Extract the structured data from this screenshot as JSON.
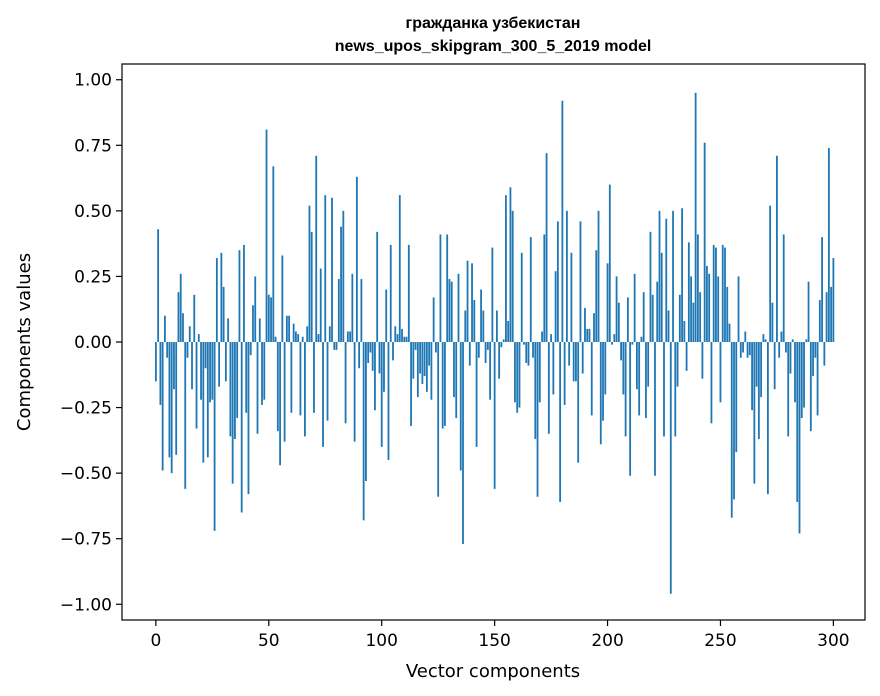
{
  "chart_data": {
    "type": "bar",
    "title_line1": "гражданка узбекистан",
    "title_line2": "news_upos_skipgram_300_5_2019 model",
    "xlabel": "Vector components",
    "ylabel": "Components values",
    "xlim": [
      -15,
      314
    ],
    "ylim": [
      -1.06,
      1.06
    ],
    "x_ticks": [
      0,
      50,
      100,
      150,
      200,
      250,
      300
    ],
    "x_tick_labels": [
      "0",
      "50",
      "100",
      "150",
      "200",
      "250",
      "300"
    ],
    "y_ticks": [
      1.0,
      0.75,
      0.5,
      0.25,
      0.0,
      -0.25,
      -0.5,
      -0.75,
      -1.0
    ],
    "y_tick_labels": [
      "1.00",
      "0.75",
      "0.50",
      "0.25",
      "0.00",
      "−0.25",
      "−0.50",
      "−0.75",
      "−1.00"
    ],
    "bar_color": "#1f77b4",
    "values": [
      -0.15,
      0.43,
      -0.24,
      -0.49,
      0.1,
      -0.06,
      -0.44,
      -0.5,
      -0.18,
      -0.43,
      0.19,
      0.26,
      0.11,
      -0.56,
      -0.06,
      0.06,
      -0.18,
      0.18,
      -0.33,
      0.03,
      -0.22,
      -0.46,
      -0.1,
      -0.44,
      -0.23,
      -0.22,
      -0.72,
      0.32,
      -0.17,
      0.34,
      0.21,
      -0.15,
      0.09,
      -0.36,
      -0.54,
      -0.37,
      -0.29,
      0.35,
      -0.65,
      0.37,
      -0.27,
      -0.58,
      -0.05,
      0.14,
      0.25,
      -0.35,
      0.09,
      -0.24,
      -0.22,
      0.81,
      0.18,
      0.17,
      0.67,
      0.02,
      -0.34,
      -0.47,
      0.33,
      -0.38,
      0.1,
      0.1,
      -0.27,
      0.07,
      0.04,
      0.03,
      -0.28,
      0.02,
      -0.36,
      0.06,
      0.52,
      0.42,
      -0.27,
      0.71,
      0.03,
      0.28,
      -0.4,
      0.56,
      -0.3,
      0.06,
      0.55,
      -0.03,
      -0.03,
      0.24,
      0.44,
      0.5,
      -0.31,
      0.04,
      0.04,
      0.26,
      -0.38,
      0.63,
      -0.1,
      0.24,
      -0.68,
      -0.53,
      -0.08,
      -0.04,
      -0.11,
      -0.26,
      0.42,
      -0.12,
      -0.4,
      -0.19,
      0.2,
      -0.45,
      0.37,
      -0.07,
      0.06,
      0.03,
      0.56,
      0.05,
      0.02,
      0.02,
      0.37,
      -0.32,
      -0.14,
      -0.03,
      -0.21,
      -0.12,
      -0.16,
      -0.13,
      -0.19,
      -0.09,
      -0.22,
      0.17,
      -0.04,
      -0.59,
      0.41,
      -0.33,
      -0.32,
      0.41,
      0.24,
      0.23,
      -0.21,
      -0.29,
      0.26,
      -0.49,
      -0.77,
      0.12,
      0.31,
      -0.09,
      0.3,
      0.16,
      -0.4,
      -0.06,
      0.2,
      0.12,
      -0.08,
      -0.03,
      -0.22,
      0.36,
      -0.56,
      0.12,
      -0.14,
      -0.02,
      0.01,
      0.56,
      0.08,
      0.59,
      0.5,
      -0.23,
      -0.27,
      -0.25,
      0.34,
      -0.01,
      -0.08,
      -0.09,
      0.4,
      -0.06,
      -0.37,
      -0.59,
      -0.23,
      0.04,
      0.41,
      0.72,
      -0.35,
      0.03,
      -0.2,
      0.27,
      0.46,
      -0.61,
      0.92,
      -0.24,
      0.5,
      -0.09,
      0.34,
      -0.15,
      -0.15,
      -0.46,
      0.46,
      -0.12,
      0.13,
      0.05,
      0.05,
      -0.28,
      0.11,
      0.35,
      0.5,
      -0.39,
      -0.3,
      -0.2,
      0.3,
      0.6,
      -0.01,
      0.03,
      0.25,
      0.15,
      -0.07,
      -0.2,
      -0.36,
      0.17,
      -0.51,
      -0.01,
      0.26,
      -0.18,
      -0.28,
      0.02,
      0.19,
      -0.29,
      -0.17,
      0.42,
      0.18,
      -0.51,
      0.23,
      0.5,
      0.34,
      -0.36,
      0.47,
      0.12,
      -0.96,
      0.5,
      -0.36,
      -0.17,
      0.18,
      0.51,
      0.08,
      -0.11,
      0.38,
      0.25,
      0.15,
      0.95,
      0.41,
      0.19,
      -0.14,
      0.76,
      0.29,
      0.26,
      -0.31,
      0.37,
      0.36,
      0.25,
      -0.23,
      0.37,
      0.36,
      0.21,
      0.07,
      -0.67,
      -0.6,
      -0.42,
      0.25,
      -0.06,
      -0.04,
      0.04,
      -0.06,
      -0.05,
      -0.26,
      -0.54,
      -0.17,
      -0.37,
      -0.21,
      0.03,
      0.01,
      -0.58,
      0.52,
      0.15,
      -0.18,
      0.71,
      -0.06,
      0.04,
      0.41,
      -0.04,
      -0.36,
      -0.12,
      0.01,
      -0.23,
      -0.61,
      -0.73,
      -0.29,
      -0.25,
      0.01,
      0.23,
      -0.34,
      -0.13,
      -0.06,
      -0.28,
      0.16,
      0.4,
      -0.09,
      0.19,
      0.74,
      0.21,
      0.32
    ]
  }
}
